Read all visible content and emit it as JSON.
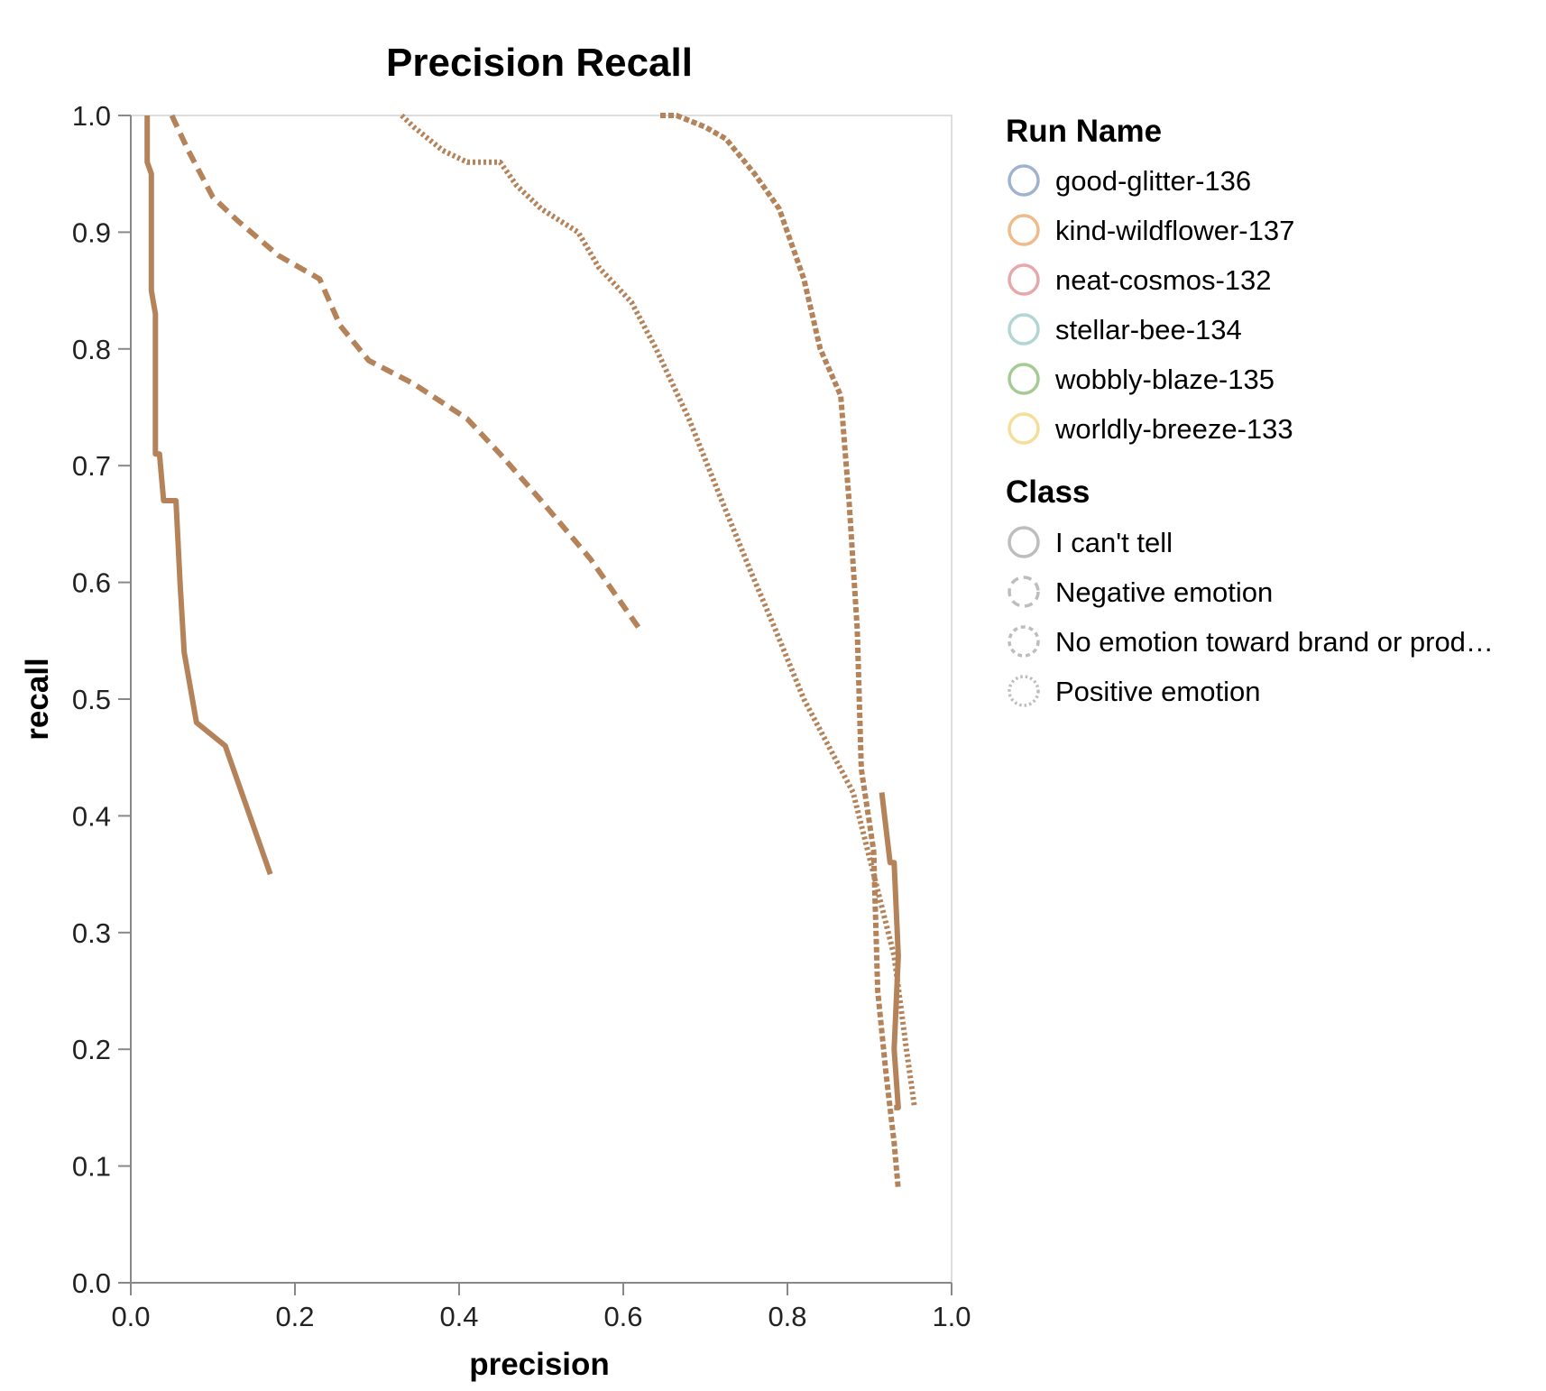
{
  "chart_data": {
    "type": "line",
    "title": "Precision Recall",
    "xlabel": "precision",
    "ylabel": "recall",
    "xlim": [
      0,
      1
    ],
    "ylim": [
      0,
      1
    ],
    "x_ticks": [
      "0.0",
      "0.2",
      "0.4",
      "0.6",
      "0.8",
      "1.0"
    ],
    "y_ticks": [
      "0.0",
      "0.1",
      "0.2",
      "0.3",
      "0.4",
      "0.5",
      "0.6",
      "0.7",
      "0.8",
      "0.9",
      "1.0"
    ],
    "grid": false,
    "legend_placement": "right",
    "run_legend": {
      "title": "Run Name",
      "items": [
        {
          "label": "good-glitter-136",
          "color": "#9fb3d1"
        },
        {
          "label": "kind-wildflower-137",
          "color": "#efbb8a"
        },
        {
          "label": "neat-cosmos-132",
          "color": "#e7a8aa"
        },
        {
          "label": "stellar-bee-134",
          "color": "#b2d6d3"
        },
        {
          "label": "wobbly-blaze-135",
          "color": "#a4cb93"
        },
        {
          "label": "worldly-breeze-133",
          "color": "#f3df9a"
        }
      ]
    },
    "class_legend": {
      "title": "Class",
      "items": [
        {
          "label": "I can't tell",
          "dash": "solid"
        },
        {
          "label": "Negative emotion",
          "dash": "dashed"
        },
        {
          "label": "No emotion toward brand or prod…",
          "dash": "dense-dashed"
        },
        {
          "label": "Positive emotion",
          "dash": "dotted"
        }
      ]
    },
    "series": [
      {
        "run": "kind-wildflower-137",
        "class": "I can't tell",
        "color": "#b5835a",
        "dash": "solid",
        "points": [
          [
            0.02,
            1.0
          ],
          [
            0.02,
            0.96
          ],
          [
            0.025,
            0.95
          ],
          [
            0.025,
            0.85
          ],
          [
            0.03,
            0.83
          ],
          [
            0.03,
            0.71
          ],
          [
            0.035,
            0.71
          ],
          [
            0.04,
            0.67
          ],
          [
            0.055,
            0.67
          ],
          [
            0.06,
            0.6
          ],
          [
            0.065,
            0.54
          ],
          [
            0.08,
            0.48
          ],
          [
            0.115,
            0.46
          ],
          [
            0.17,
            0.35
          ]
        ]
      },
      {
        "run": "kind-wildflower-137",
        "class": "Negative emotion",
        "color": "#b5835a",
        "dash": "dashed",
        "points": [
          [
            0.05,
            1.0
          ],
          [
            0.07,
            0.97
          ],
          [
            0.1,
            0.93
          ],
          [
            0.13,
            0.91
          ],
          [
            0.18,
            0.88
          ],
          [
            0.23,
            0.86
          ],
          [
            0.255,
            0.82
          ],
          [
            0.29,
            0.79
          ],
          [
            0.345,
            0.77
          ],
          [
            0.41,
            0.74
          ],
          [
            0.45,
            0.71
          ],
          [
            0.5,
            0.67
          ],
          [
            0.56,
            0.62
          ],
          [
            0.62,
            0.56
          ]
        ]
      },
      {
        "run": "kind-wildflower-137",
        "class": "No emotion toward brand or prod…",
        "color": "#b5835a",
        "dash": "dense-dashed",
        "points": [
          [
            0.645,
            1.0
          ],
          [
            0.665,
            1.0
          ],
          [
            0.7,
            0.99
          ],
          [
            0.725,
            0.98
          ],
          [
            0.76,
            0.95
          ],
          [
            0.79,
            0.92
          ],
          [
            0.82,
            0.86
          ],
          [
            0.84,
            0.8
          ],
          [
            0.865,
            0.76
          ],
          [
            0.875,
            0.67
          ],
          [
            0.885,
            0.56
          ],
          [
            0.89,
            0.44
          ],
          [
            0.905,
            0.37
          ],
          [
            0.91,
            0.25
          ],
          [
            0.92,
            0.18
          ],
          [
            0.93,
            0.12
          ],
          [
            0.935,
            0.08
          ]
        ]
      },
      {
        "run": "kind-wildflower-137",
        "class": "Positive emotion",
        "color": "#b5835a",
        "dash": "dotted",
        "points": [
          [
            0.33,
            1.0
          ],
          [
            0.345,
            0.99
          ],
          [
            0.38,
            0.97
          ],
          [
            0.41,
            0.96
          ],
          [
            0.45,
            0.96
          ],
          [
            0.47,
            0.94
          ],
          [
            0.5,
            0.92
          ],
          [
            0.545,
            0.9
          ],
          [
            0.57,
            0.87
          ],
          [
            0.61,
            0.84
          ],
          [
            0.64,
            0.8
          ],
          [
            0.68,
            0.74
          ],
          [
            0.72,
            0.67
          ],
          [
            0.755,
            0.61
          ],
          [
            0.785,
            0.56
          ],
          [
            0.82,
            0.5
          ],
          [
            0.85,
            0.46
          ],
          [
            0.88,
            0.42
          ],
          [
            0.905,
            0.35
          ],
          [
            0.93,
            0.28
          ],
          [
            0.945,
            0.2
          ],
          [
            0.955,
            0.15
          ]
        ]
      },
      {
        "run": "kind-wildflower-137",
        "class": "I can't tell",
        "color": "#b5835a",
        "dash": "solid",
        "points": [
          [
            0.915,
            0.42
          ],
          [
            0.925,
            0.36
          ],
          [
            0.93,
            0.36
          ],
          [
            0.935,
            0.28
          ],
          [
            0.93,
            0.2
          ],
          [
            0.935,
            0.15
          ],
          [
            0.93,
            0.15
          ]
        ]
      }
    ]
  }
}
